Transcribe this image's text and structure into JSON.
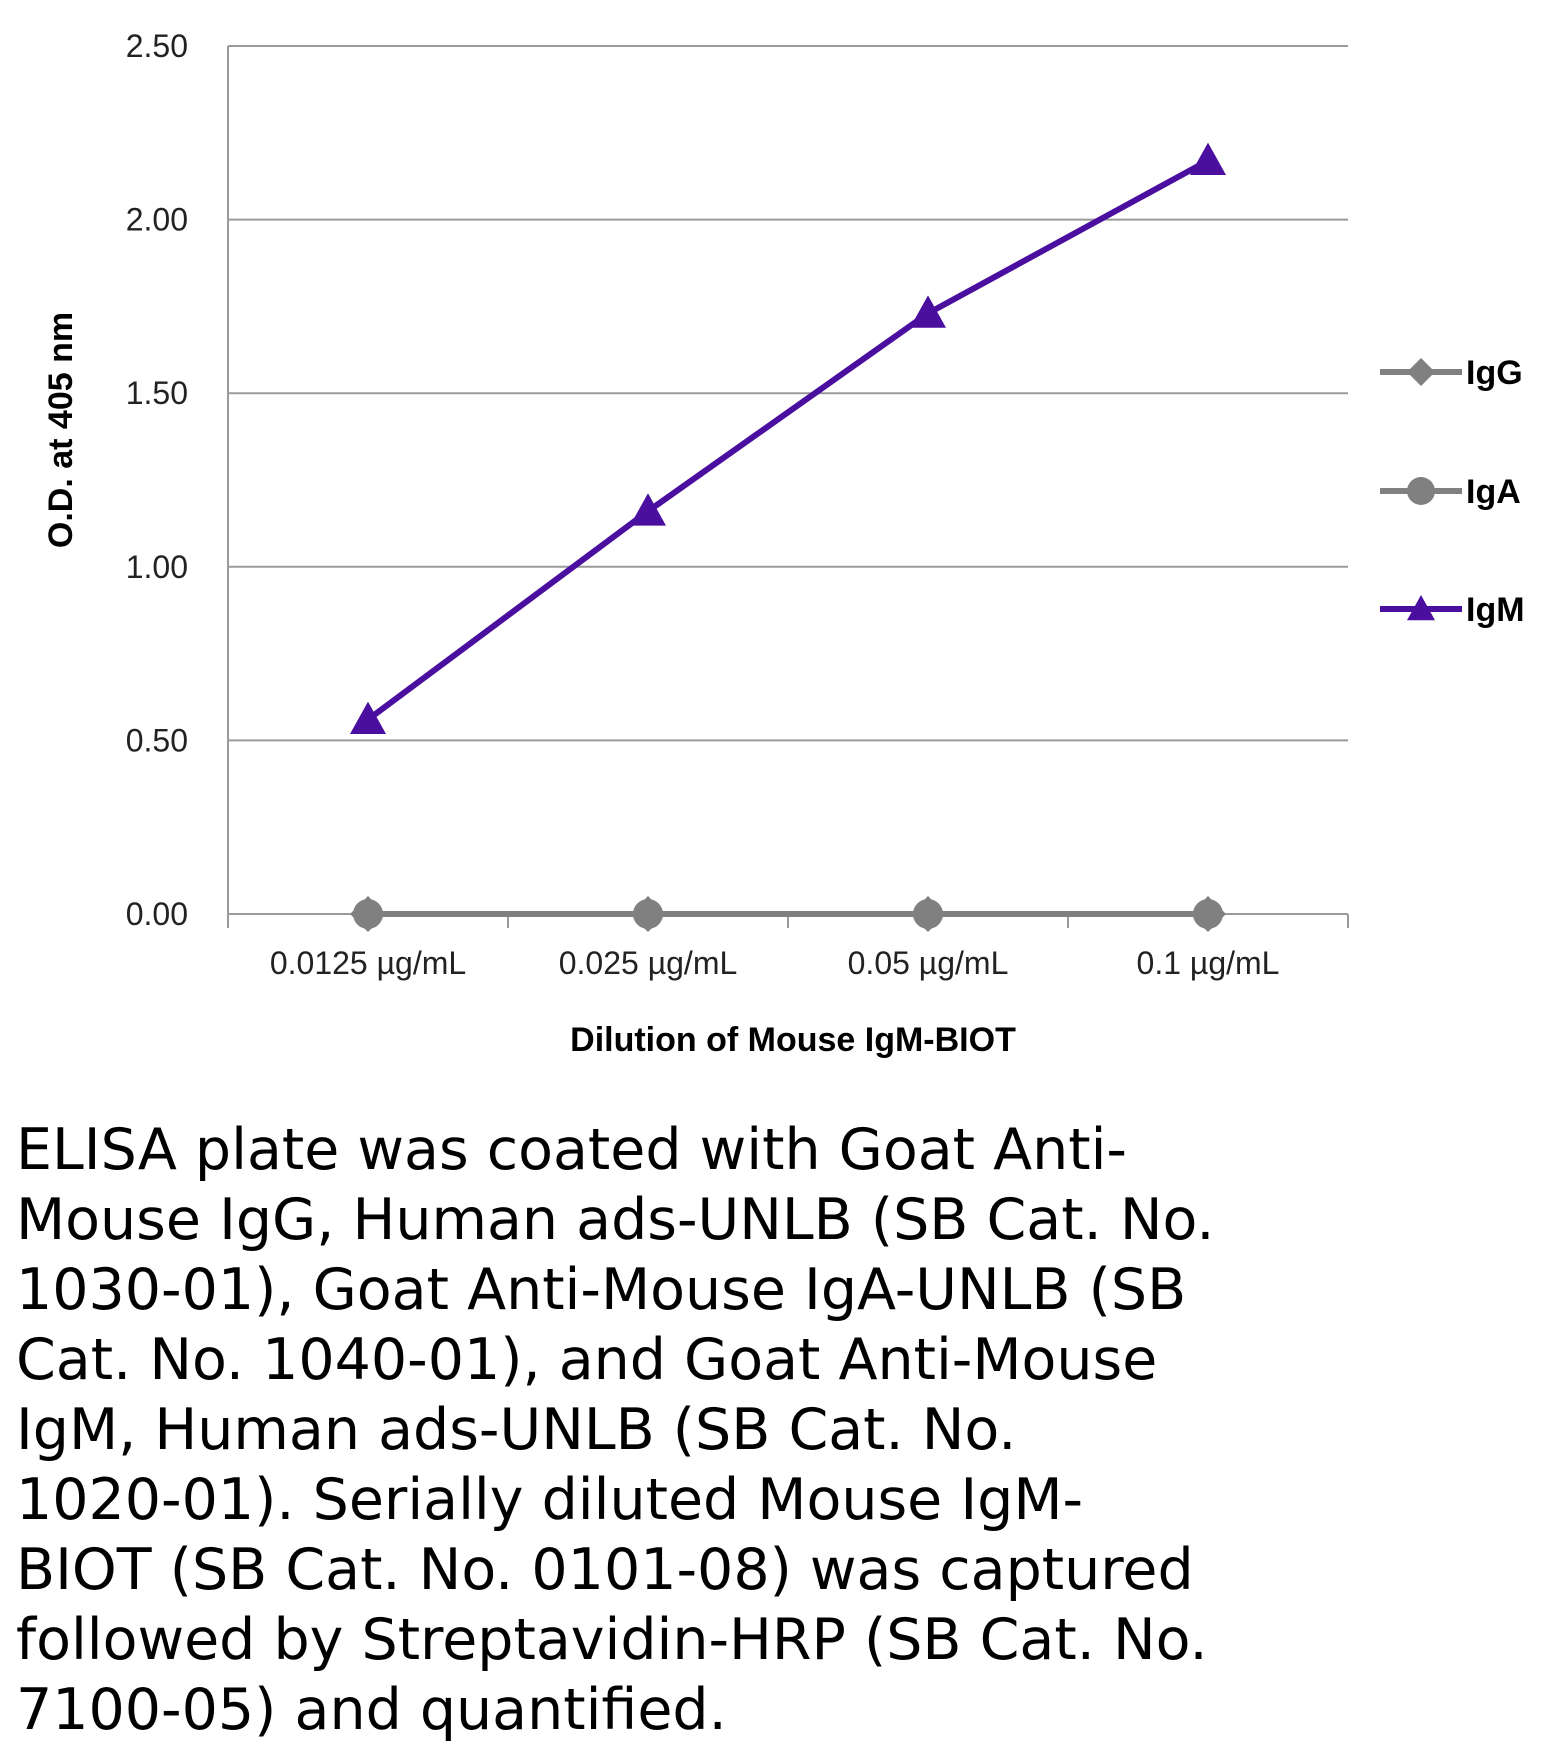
{
  "chart_data": {
    "type": "line",
    "title": "",
    "xlabel": "Dilution of Mouse IgM-BIOT",
    "ylabel": "O.D. at 405 nm",
    "categories": [
      "0.0125 µg/mL",
      "0.025 µg/mL",
      "0.05 µg/mL",
      "0.1 µg/mL"
    ],
    "y_ticks": [
      "0.00",
      "0.50",
      "1.00",
      "1.50",
      "2.00",
      "2.50"
    ],
    "ylim": [
      0,
      2.5
    ],
    "grid": true,
    "legend_position": "right",
    "series": [
      {
        "name": "IgG",
        "values": [
          0,
          0,
          0,
          0
        ],
        "color": "#808080",
        "marker": "diamond"
      },
      {
        "name": "IgA",
        "values": [
          0,
          0,
          0,
          0
        ],
        "color": "#808080",
        "marker": "circle"
      },
      {
        "name": "IgM",
        "values": [
          0.56,
          1.16,
          1.73,
          2.17
        ],
        "color": "#4B0FA0",
        "marker": "triangle"
      }
    ]
  },
  "caption": "ELISA plate was coated with Goat Anti-\nMouse IgG, Human ads-UNLB (SB Cat. No.\n1030-01), Goat Anti-Mouse IgA-UNLB (SB\nCat. No. 1040-01), and Goat Anti-Mouse\nIgM, Human ads-UNLB (SB Cat. No.\n1020-01).  Serially diluted Mouse IgM-\nBIOT (SB Cat. No. 0101-08) was captured\nfollowed by Streptavidin-HRP (SB Cat. No.\n7100-05) and quantified."
}
